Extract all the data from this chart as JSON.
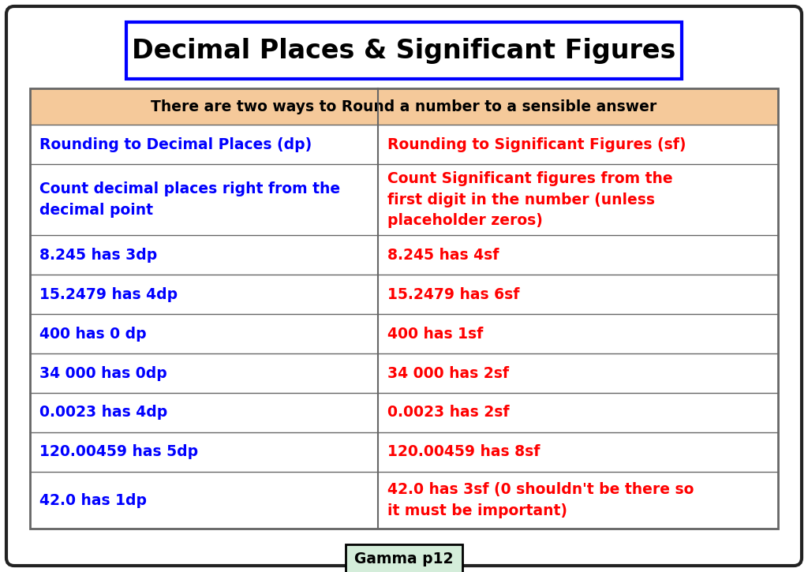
{
  "title": "Decimal Places & Significant Figures",
  "subtitle": "There are two ways to Round a number to a sensible answer",
  "col_headers": [
    "Rounding to Decimal Places (dp)",
    "Rounding to Significant Figures (sf)"
  ],
  "col2_header_note": [
    "Count decimal places right from the",
    "decimal point"
  ],
  "col2_header_note_right": [
    "Count Significant figures from the",
    "first digit in the number (unless",
    "placeholder zeros)"
  ],
  "rows": [
    [
      "8.245 has 3dp",
      "8.245 has 4sf"
    ],
    [
      "15.2479 has 4dp",
      "15.2479 has 6sf"
    ],
    [
      "400 has 0 dp",
      "400 has 1sf"
    ],
    [
      "34 000 has 0dp",
      "34 000 has 2sf"
    ],
    [
      "0.0023 has 4dp",
      "0.0023 has 2sf"
    ],
    [
      "120.00459 has 5dp",
      "120.00459 has 8sf"
    ],
    [
      "42.0 has 1dp",
      "42.0 has 3sf (0 shouldn't be there so\nit must be important)"
    ]
  ],
  "footer": "Gamma p12",
  "bg_color": "#ffffff",
  "outer_border_color": "#222222",
  "title_box_border": "#0000ff",
  "title_color": "#000000",
  "subtitle_bg": "#f5c99a",
  "subtitle_color": "#000000",
  "header_color_left": "#0000ff",
  "header_color_right": "#ff0000",
  "row_left_color": "#0000ff",
  "row_right_color": "#ff0000",
  "table_border_color": "#666666",
  "footer_border": "#000000",
  "footer_bg": "#d4edda"
}
